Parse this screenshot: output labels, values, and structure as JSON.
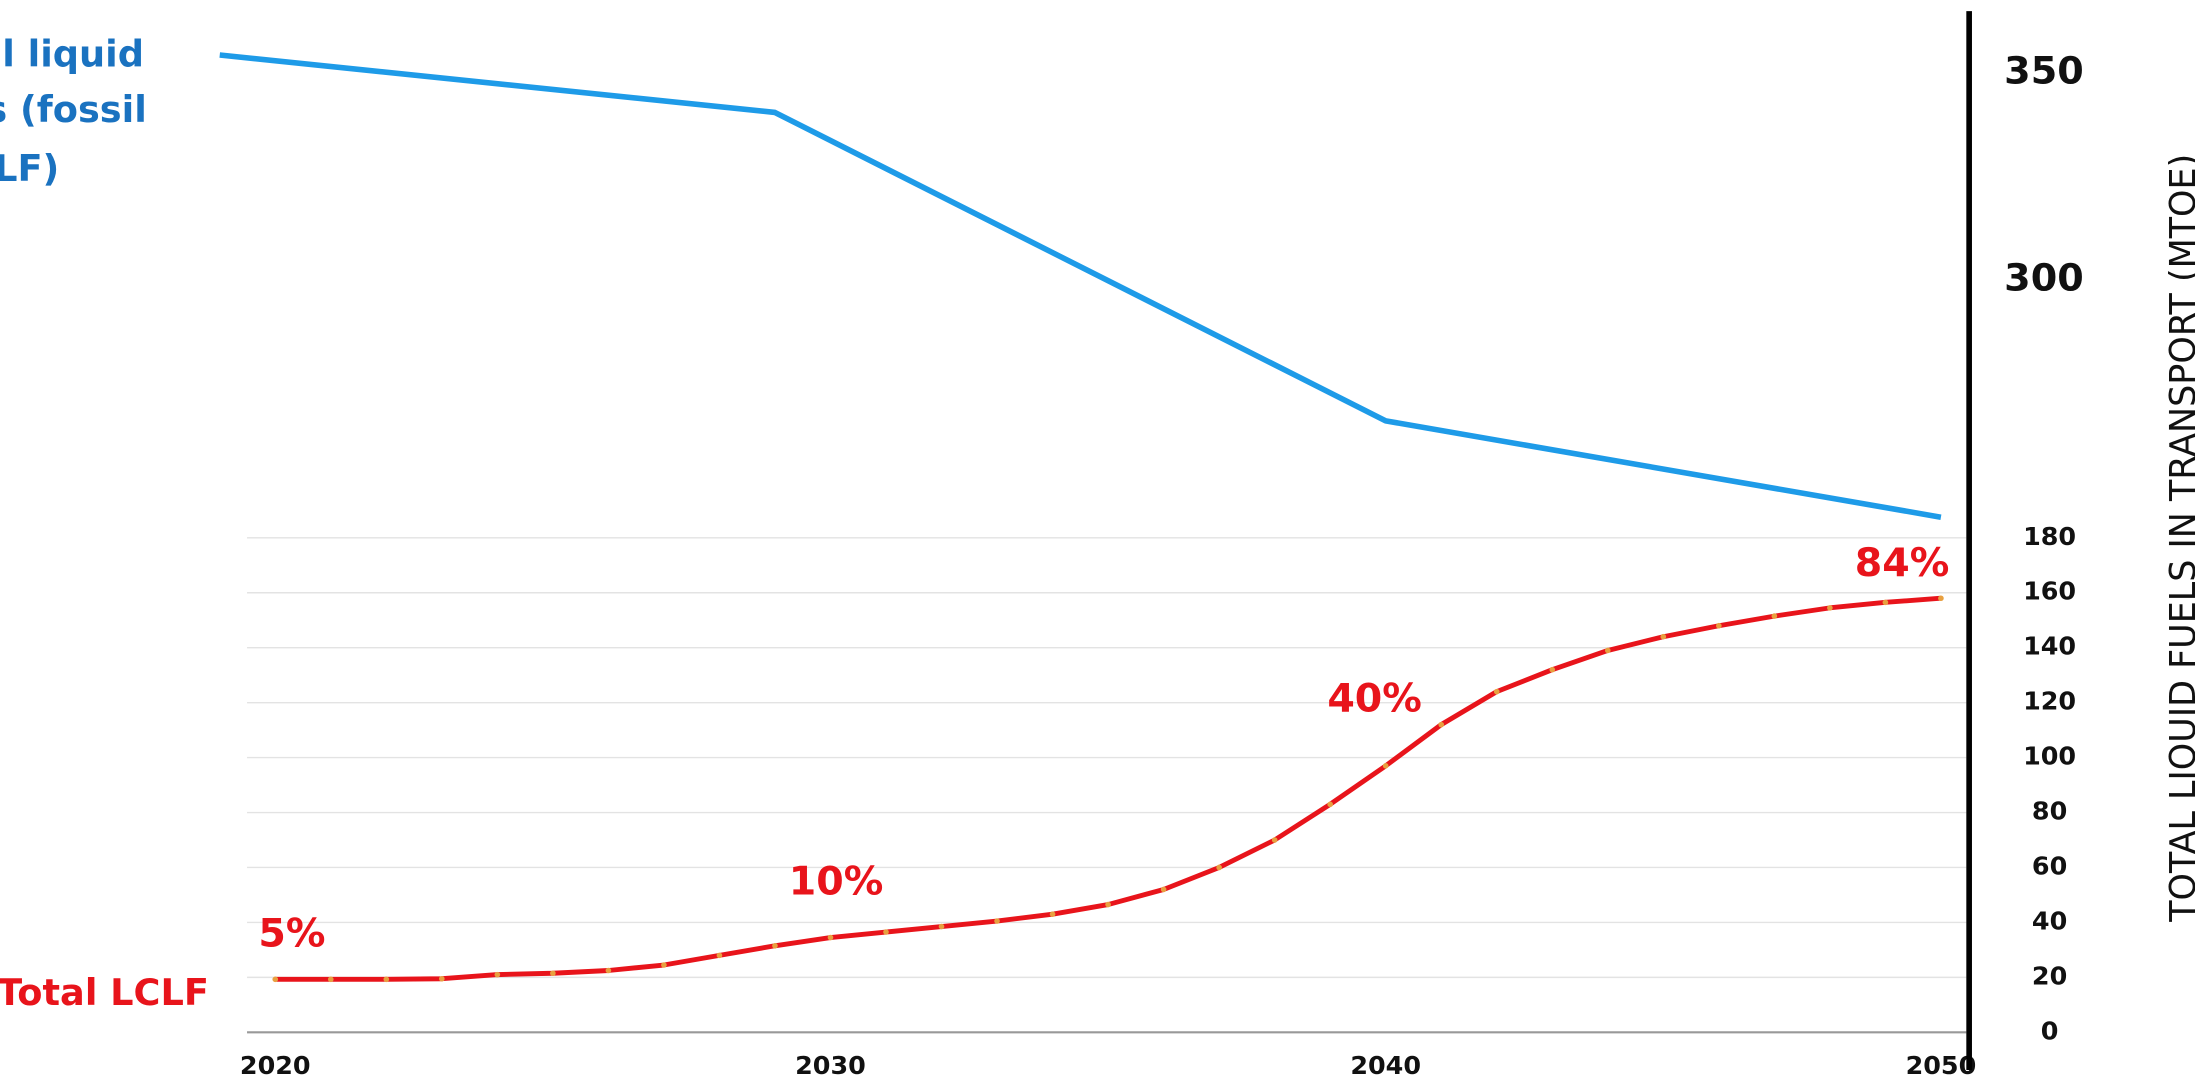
{
  "chart_data": {
    "type": "line",
    "y_axis_label": "TOTAL LIQUID FUELS IN TRANSPORT (MTOE)",
    "xticks": [
      2020,
      2030,
      2040,
      2050
    ],
    "xlim": [
      2019.5,
      2050.5
    ],
    "ylim": [
      0,
      180
    ],
    "yticks": [
      0,
      20,
      40,
      60,
      80,
      100,
      120,
      140,
      160,
      180
    ],
    "y2lim": [
      118,
      365
    ],
    "y2ticks": [
      300,
      350
    ],
    "grid": true,
    "series": [
      {
        "axis": "y2",
        "color": "#1e9be8",
        "x": [
          2019,
          2029,
          2040,
          2050
        ],
        "values": [
          354.4,
          340.5,
          265.9,
          242.6
        ]
      },
      {
        "name": "Total LCLF",
        "color": "#e8141b",
        "marker_color": "#e8a040",
        "x": [
          2020,
          2021,
          2022,
          2023,
          2024,
          2025,
          2026,
          2027,
          2028,
          2029,
          2030,
          2031,
          2032,
          2033,
          2034,
          2035,
          2036,
          2037,
          2038,
          2039,
          2040,
          2041,
          2042,
          2043,
          2044,
          2045,
          2046,
          2047,
          2048,
          2049,
          2050
        ],
        "values": [
          19.3,
          19.3,
          19.3,
          19.5,
          21,
          21.5,
          22.5,
          24.5,
          28,
          31.5,
          34.5,
          36.5,
          38.5,
          40.5,
          43,
          46.5,
          52,
          60,
          70,
          83,
          97,
          112,
          124,
          132,
          139,
          144,
          148,
          151.5,
          154.5,
          156.5,
          158
        ]
      }
    ],
    "annotations": [
      {
        "text": "5%",
        "x": 2020.3
      },
      {
        "text": "10%",
        "x": 2030.1
      },
      {
        "text": "40%",
        "x": 2039.8
      },
      {
        "text": "84%",
        "x": 2049.3
      },
      {
        "text": "al liquid"
      },
      {
        "text": "s (fossil"
      },
      {
        "text": "LF)"
      }
    ]
  }
}
